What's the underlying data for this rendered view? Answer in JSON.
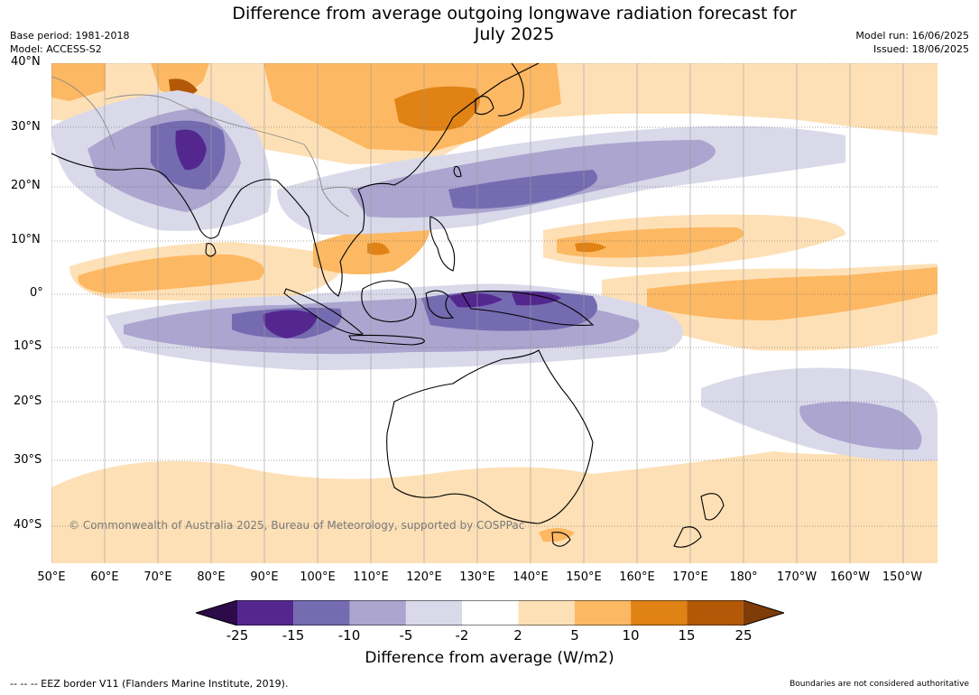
{
  "header": {
    "title_line1": "Difference from average outgoing longwave radiation forecast for",
    "title_line2": "July 2025",
    "base_period": "Base period: 1981-2018",
    "model": "Model: ACCESS-S2",
    "model_run": "Model run: 16/06/2025",
    "issued": "Issued: 18/06/2025"
  },
  "map": {
    "lat_labels": [
      "40°N",
      "30°N",
      "20°N",
      "10°N",
      "0°",
      "10°S",
      "20°S",
      "30°S",
      "40°S"
    ],
    "lon_labels": [
      "50°E",
      "60°E",
      "70°E",
      "80°E",
      "90°E",
      "100°E",
      "110°E",
      "120°E",
      "130°E",
      "140°E",
      "150°E",
      "160°E",
      "170°E",
      "180°",
      "170°W",
      "160°W",
      "150°W"
    ],
    "copyright": "© Commonwealth of Australia 2025, Bureau of Meteorology, supported by COSPPac"
  },
  "colorbar": {
    "title": "Difference from average (W/m2)",
    "ticks": [
      "-25",
      "-15",
      "-10",
      "-5",
      "-2",
      "2",
      "5",
      "10",
      "15",
      "25"
    ],
    "colors": {
      "below_-25": "#2d0a4a",
      "-25_to_-15": "#54278f",
      "-15_to_-10": "#756bb1",
      "-10_to_-5": "#aba5cf",
      "-5_to_-2": "#d9d9ea",
      "-2_to_2": "#ffffff",
      "2_to_5": "#fee0b6",
      "5_to_10": "#fdb863",
      "10_to_15": "#e08214",
      "15_to_25": "#b35806",
      "above_25": "#7f3b08"
    }
  },
  "footer": {
    "eez_note": "--  --  -- EEZ border V11 (Flanders Marine Institute, 2019).",
    "boundary_note": "Boundaries are not considered authoritative"
  }
}
